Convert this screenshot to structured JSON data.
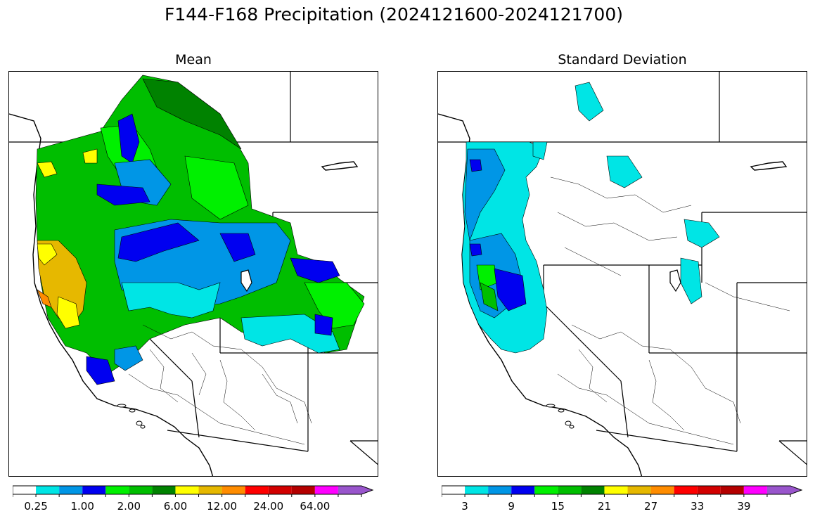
{
  "figure": {
    "title": "F144-F168 Precipitation (2024121600-2024121700)"
  },
  "panels": [
    {
      "title": "Mean",
      "colorbar": {
        "colors": [
          "#ffffff",
          "#00e5e5",
          "#0096e6",
          "#0000f0",
          "#00f000",
          "#00be00",
          "#008200",
          "#ffff00",
          "#e6b800",
          "#ff8c00",
          "#ff0000",
          "#d20000",
          "#b40000",
          "#ff00ff",
          "#9955cc"
        ],
        "tick_labels": [
          "0.25",
          "1.00",
          "2.00",
          "6.00",
          "12.00",
          "24.00",
          "64.00"
        ],
        "tick_boundaries": [
          1,
          3,
          5,
          7,
          9,
          11,
          13
        ],
        "extend": "max"
      }
    },
    {
      "title": "Standard Deviation",
      "colorbar": {
        "colors": [
          "#ffffff",
          "#00e5e5",
          "#0096e6",
          "#0000f0",
          "#00f000",
          "#00be00",
          "#008200",
          "#ffff00",
          "#e6b800",
          "#ff8c00",
          "#ff0000",
          "#d20000",
          "#b40000",
          "#ff00ff",
          "#9955cc"
        ],
        "tick_labels": [
          "3",
          "9",
          "15",
          "21",
          "27",
          "33",
          "39"
        ],
        "tick_boundaries": [
          1,
          3,
          5,
          7,
          9,
          11,
          13
        ],
        "extend": "max"
      }
    }
  ]
}
